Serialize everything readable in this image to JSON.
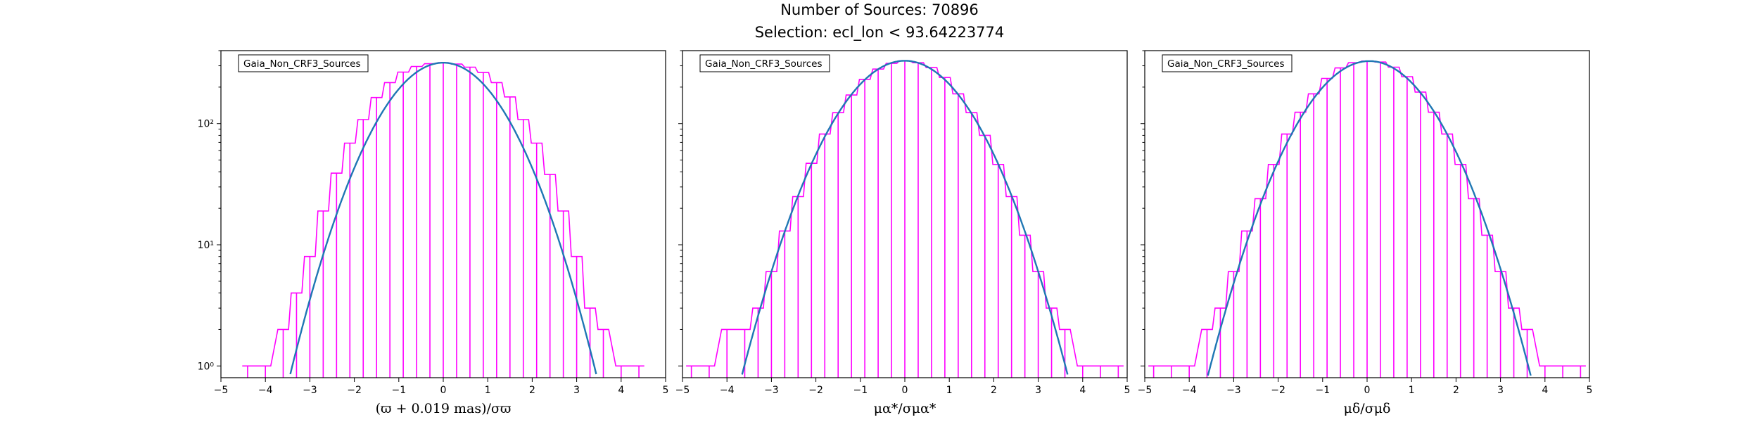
{
  "figure": {
    "title_line1": "Number of Sources: 70896",
    "title_line2": "Selection: ecl_lon < 93.64223774"
  },
  "colors": {
    "histogram": "#ff00ff",
    "model": "#1f77b4",
    "axes": "#000000"
  },
  "chart_data": [
    {
      "type": "line",
      "title": "",
      "legend": "Gaia_Non_CRF3_Sources",
      "legend_placement": "top-left",
      "xlabel": "(ϖ + 0.019 mas)/σϖ",
      "ylabel": "",
      "xlim": [
        -5,
        5
      ],
      "ylim": [
        0.8,
        400
      ],
      "yscale": "log",
      "xticks": [
        "−5",
        "−4",
        "−3",
        "−2",
        "−1",
        "0",
        "1",
        "2",
        "3",
        "4",
        "5"
      ],
      "yticks": [
        {
          "value": 1,
          "label": "10⁰"
        },
        {
          "value": 10,
          "label": "10¹"
        },
        {
          "value": 100,
          "label": "10²"
        }
      ],
      "grid": false,
      "series": [
        {
          "kind": "gaussian-model",
          "amplitude": 318,
          "mean": 0.0,
          "sigma": 1.0
        },
        {
          "kind": "histogram",
          "x": [
            -4.4,
            -4.0,
            -3.6,
            -3.3,
            -3.0,
            -2.7,
            -2.4,
            -2.1,
            -1.8,
            -1.5,
            -1.2,
            -0.9,
            -0.6,
            -0.3,
            0.0,
            0.3,
            0.6,
            0.9,
            1.2,
            1.5,
            1.8,
            2.1,
            2.4,
            2.7,
            3.0,
            3.3,
            3.6,
            4.0,
            4.4
          ],
          "y": [
            1,
            1,
            2,
            4,
            8,
            19,
            39,
            69,
            108,
            164,
            218,
            266,
            296,
            312,
            318,
            310,
            292,
            264,
            218,
            166,
            108,
            69,
            38,
            19,
            8,
            3,
            2,
            1,
            1
          ]
        }
      ]
    },
    {
      "type": "line",
      "title": "",
      "legend": "Gaia_Non_CRF3_Sources",
      "legend_placement": "top-left",
      "xlabel": "μα*/σμα*",
      "ylabel": "",
      "xlim": [
        -5,
        5
      ],
      "ylim": [
        0.8,
        400
      ],
      "yscale": "log",
      "xticks": [
        "−5",
        "−4",
        "−3",
        "−2",
        "−1",
        "0",
        "1",
        "2",
        "3",
        "4",
        "5"
      ],
      "yticks": [],
      "grid": false,
      "series": [
        {
          "kind": "gaussian-model",
          "amplitude": 330,
          "mean": 0.0,
          "sigma": 1.06
        },
        {
          "kind": "histogram",
          "x": [
            -4.8,
            -4.4,
            -4.0,
            -3.6,
            -3.3,
            -3.0,
            -2.7,
            -2.4,
            -2.1,
            -1.8,
            -1.5,
            -1.2,
            -0.9,
            -0.6,
            -0.3,
            0.0,
            0.3,
            0.6,
            0.9,
            1.2,
            1.5,
            1.8,
            2.1,
            2.4,
            2.7,
            3.0,
            3.3,
            3.6,
            4.0,
            4.4,
            4.8
          ],
          "y": [
            1,
            1,
            2,
            2,
            3,
            6,
            13,
            25,
            47,
            82,
            123,
            172,
            232,
            282,
            314,
            330,
            318,
            290,
            240,
            176,
            123,
            80,
            46,
            25,
            12,
            6,
            3,
            2,
            1,
            1,
            1
          ]
        }
      ]
    },
    {
      "type": "line",
      "title": "",
      "legend": "Gaia_Non_CRF3_Sources",
      "legend_placement": "top-left",
      "xlabel": "μδ/σμδ",
      "ylabel": "",
      "xlim": [
        -5,
        5
      ],
      "ylim": [
        0.8,
        400
      ],
      "yscale": "log",
      "xticks": [
        "−5",
        "−4",
        "−3",
        "−2",
        "−1",
        "0",
        "1",
        "2",
        "3",
        "4",
        "5"
      ],
      "yticks": [],
      "grid": false,
      "series": [
        {
          "kind": "gaussian-model",
          "amplitude": 328,
          "mean": 0.05,
          "sigma": 1.05
        },
        {
          "kind": "histogram",
          "x": [
            -4.8,
            -4.4,
            -4.0,
            -3.6,
            -3.3,
            -3.0,
            -2.7,
            -2.4,
            -2.1,
            -1.8,
            -1.5,
            -1.2,
            -0.9,
            -0.6,
            -0.3,
            0.0,
            0.3,
            0.6,
            0.9,
            1.2,
            1.5,
            1.8,
            2.1,
            2.4,
            2.7,
            3.0,
            3.3,
            3.6,
            4.0,
            4.4,
            4.8
          ],
          "y": [
            1,
            1,
            1,
            2,
            3,
            6,
            13,
            24,
            46,
            82,
            124,
            176,
            236,
            288,
            318,
            328,
            322,
            292,
            244,
            182,
            124,
            82,
            46,
            24,
            12,
            6,
            3,
            2,
            1,
            1,
            1
          ]
        }
      ]
    }
  ]
}
